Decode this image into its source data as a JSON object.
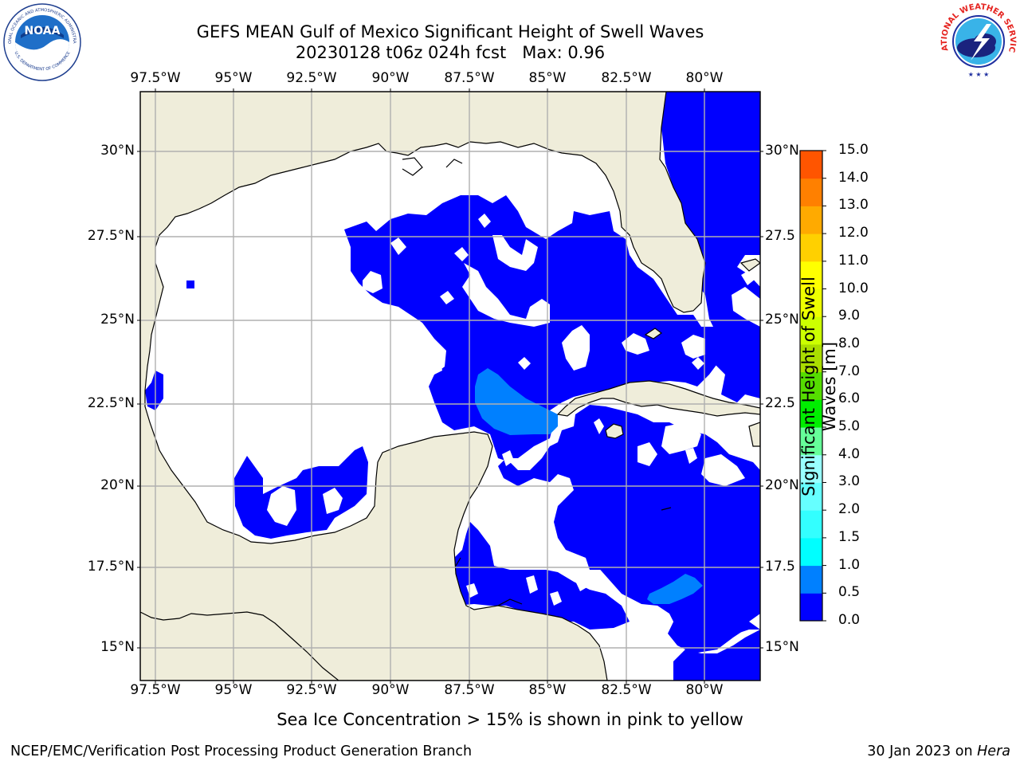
{
  "header": {
    "title_line1": "GEFS MEAN Gulf of Mexico Significant Height of Swell Waves",
    "title_line2": "20230128 t06z 024h fcst   Max: 0.96"
  },
  "logos": {
    "noaa_text": "NOAA",
    "noaa_ring_top": "NATIONAL OCEANIC AND ATMOSPHERIC ADMINISTRATION",
    "noaa_ring_bottom": "U.S. DEPARTMENT OF COMMERCE",
    "nws_ring": "NATIONAL WEATHER SERVICE"
  },
  "map": {
    "lon_labels": [
      "97.5°W",
      "95°W",
      "92.5°W",
      "90°W",
      "87.5°W",
      "85°W",
      "82.5°W",
      "80°W"
    ],
    "lat_labels_left": [
      "30°N",
      "27.5°N",
      "25°N",
      "22.5°N",
      "20°N",
      "17.5°N",
      "15°N"
    ],
    "lat_labels_right": [
      "30°N",
      "27.5",
      "25°N",
      "22.5",
      "20°N",
      "17.5",
      "15°N"
    ],
    "colors": {
      "land": "#efedda",
      "ocean_low": "#0000ff",
      "ocean_mid": "#0080ff",
      "grid": "#b0b0b0"
    }
  },
  "colorbar": {
    "label_line1": "Significant Height of Swell",
    "label_line2": "Waves [m]",
    "ticks": [
      "0.0",
      "0.5",
      "1.0",
      "1.5",
      "2.0",
      "3.0",
      "4.0",
      "5.0",
      "6.0",
      "7.0",
      "8.0",
      "9.0",
      "10.0",
      "11.0",
      "12.0",
      "13.0",
      "14.0",
      "15.0"
    ],
    "colors": [
      "#0000ff",
      "#0080ff",
      "#00ffff",
      "#33ffff",
      "#66ffff",
      "#99ffff",
      "#66ff99",
      "#00ee00",
      "#55dd00",
      "#aadd00",
      "#ccff00",
      "#eeff00",
      "#ffff00",
      "#ffd000",
      "#ffaa00",
      "#ff8000",
      "#ff5500",
      "#ff2a00",
      "#ff0000"
    ]
  },
  "footer": {
    "note": "Sea Ice Concentration > 15% is shown in pink to yellow",
    "credit": "NCEP/EMC/Verification Post Processing Product Generation Branch",
    "date": "30 Jan 2023 on",
    "host": "Hera"
  }
}
